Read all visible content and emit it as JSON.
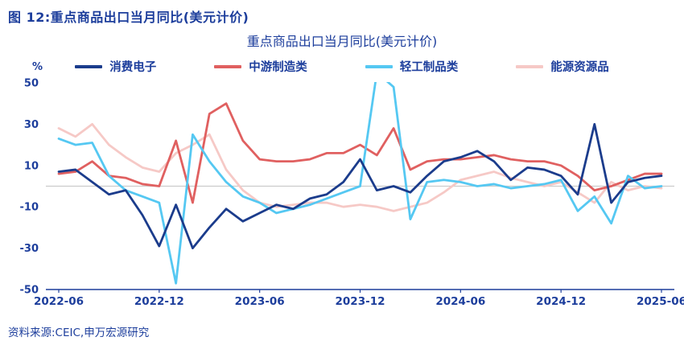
{
  "page": {
    "header": "图 12:重点商品出口当月同比(美元计价)",
    "source": "资料来源:CEIC,申万宏源研究",
    "text_color": "#1D3E9C",
    "background": "#FFFFFF"
  },
  "chart_data": {
    "type": "line",
    "title": "重点商品出口当月同比(美元计价)",
    "ylabel": "%",
    "ylim": [
      -50,
      50
    ],
    "yticks": [
      50,
      30,
      10,
      -10,
      -30,
      -50
    ],
    "xtick_labels": [
      "2022-06",
      "2022-12",
      "2023-06",
      "2023-12",
      "2024-06",
      "2024-12",
      "2025-06"
    ],
    "x": [
      "2022-06",
      "2022-07",
      "2022-08",
      "2022-09",
      "2022-10",
      "2022-11",
      "2022-12",
      "2023-01",
      "2023-02",
      "2023-03",
      "2023-04",
      "2023-05",
      "2023-06",
      "2023-07",
      "2023-08",
      "2023-09",
      "2023-10",
      "2023-11",
      "2023-12",
      "2024-01",
      "2024-02",
      "2024-03",
      "2024-04",
      "2024-05",
      "2024-06",
      "2024-07",
      "2024-08",
      "2024-09",
      "2024-10",
      "2024-11",
      "2024-12",
      "2025-01",
      "2025-02",
      "2025-03",
      "2025-04",
      "2025-05",
      "2025-06"
    ],
    "grid": "horizontal zero line only",
    "legend_position": "top",
    "zero_line_color": "#CCCCCC",
    "axis_color": "#1D3E9C",
    "series": [
      {
        "id": "consumer-electronics",
        "name": "消费电子",
        "color": "#1B3C8C",
        "values": [
          7,
          8,
          2,
          -4,
          -2,
          -14,
          -29,
          -9,
          -30,
          -20,
          -11,
          -17,
          -13,
          -9,
          -11,
          -6,
          -4,
          2,
          13,
          -2,
          0,
          -3,
          5,
          12,
          14,
          17,
          12,
          3,
          9,
          8,
          5,
          -4,
          30,
          -8,
          2,
          4,
          5
        ]
      },
      {
        "id": "midstream-manufacturing",
        "name": "中游制造类",
        "color": "#E06060",
        "values": [
          6,
          7,
          12,
          5,
          4,
          1,
          0,
          22,
          -8,
          35,
          40,
          22,
          13,
          12,
          12,
          13,
          16,
          16,
          20,
          15,
          28,
          8,
          12,
          13,
          13,
          14,
          15,
          13,
          12,
          12,
          10,
          5,
          -2,
          0,
          3,
          6,
          6
        ]
      },
      {
        "id": "light-industry-products",
        "name": "轻工制品类",
        "color": "#55C8F2",
        "values": [
          23,
          20,
          21,
          5,
          -2,
          -5,
          -8,
          -47,
          25,
          12,
          2,
          -5,
          -8,
          -13,
          -11,
          -9,
          -6,
          -3,
          0,
          55,
          48,
          -16,
          2,
          3,
          2,
          0,
          1,
          -1,
          0,
          1,
          3,
          -12,
          -5,
          -18,
          5,
          -1,
          0
        ]
      },
      {
        "id": "energy-resources",
        "name": "能源资源品",
        "color": "#F6C9C6",
        "values": [
          28,
          24,
          30,
          20,
          14,
          9,
          7,
          16,
          20,
          25,
          8,
          -2,
          -8,
          -10,
          -9,
          -8,
          -8,
          -10,
          -9,
          -10,
          -12,
          -10,
          -8,
          -3,
          3,
          5,
          7,
          4,
          2,
          0,
          2,
          -3,
          -8,
          2,
          -2,
          0,
          -1
        ]
      }
    ]
  }
}
